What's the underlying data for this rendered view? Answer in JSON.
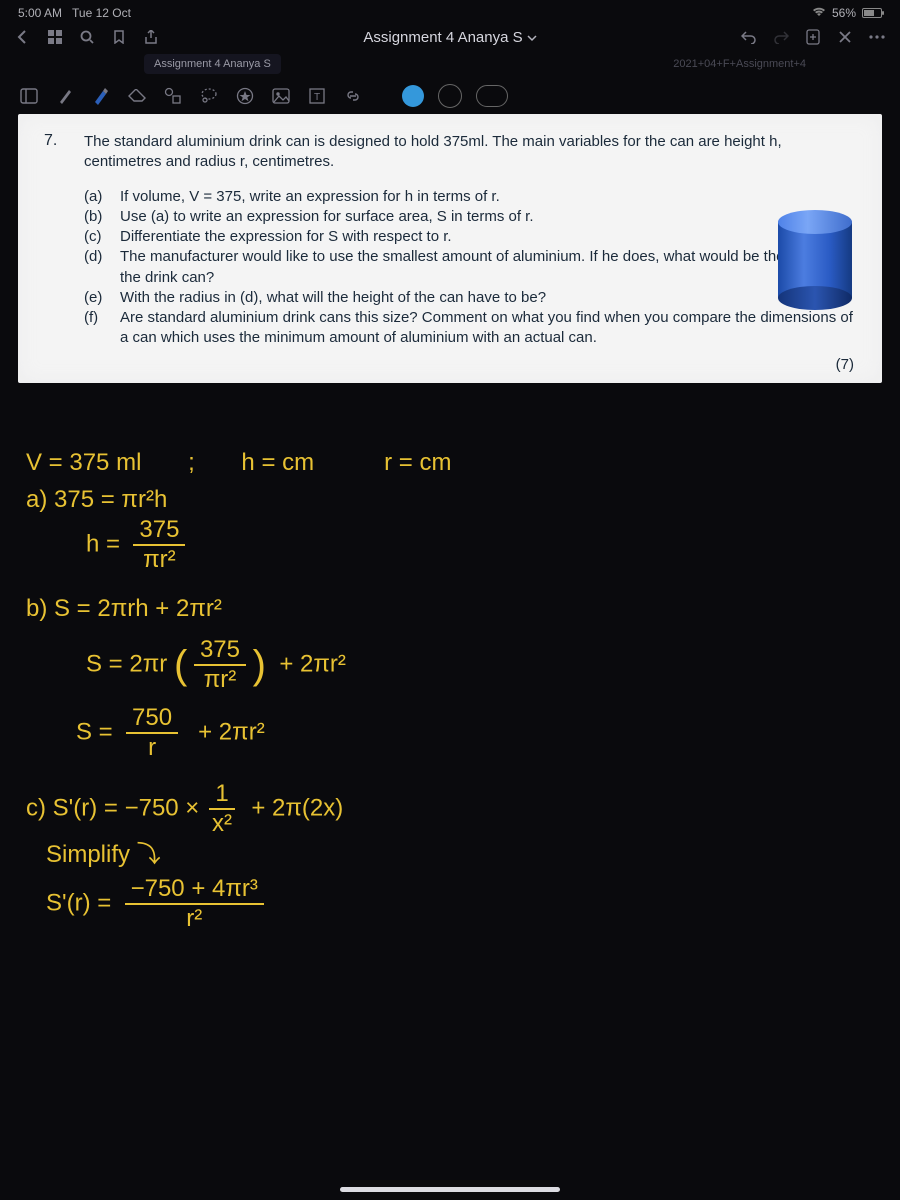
{
  "status": {
    "time": "5:00 AM",
    "date": "Tue 12 Oct",
    "battery_pct": "56%"
  },
  "titlebar": {
    "title": "Assignment 4 Ananya S"
  },
  "tabs": {
    "active": "Assignment 4 Ananya S",
    "secondary": "2021+04+F+Assignment+4"
  },
  "toolbar": {
    "current_color": "#3498db"
  },
  "question": {
    "number": "7.",
    "intro": "The standard aluminium drink can is designed to hold 375ml. The main variables for the can are height h, centimetres and radius r, centimetres.",
    "parts": [
      {
        "lbl": "(a)",
        "text": "If volume, V = 375, write an expression for h in terms of r."
      },
      {
        "lbl": "(b)",
        "text": "Use (a) to write an expression for surface area, S in terms of r."
      },
      {
        "lbl": "(c)",
        "text": "Differentiate the expression for S with respect to r."
      },
      {
        "lbl": "(d)",
        "text": "The manufacturer would like to use the smallest amount of aluminium. If he does, what would be the radius of the drink can?"
      },
      {
        "lbl": "(e)",
        "text": "With the radius in (d), what will the height of the can have to be?"
      },
      {
        "lbl": "(f)",
        "text": "Are standard aluminium drink cans this size? Comment on what you find when you compare the dimensions of a can which uses the minimum amount of aluminium with an actual can."
      }
    ],
    "marks": "(7)"
  },
  "handwriting": {
    "color": "#e8c233",
    "l1_a": "V = 375 ml",
    "l1_b": "h = cm",
    "l1_c": "r = cm",
    "l2": "a) 375 = πr²h",
    "l3_lead": "h =",
    "l3_num": "375",
    "l3_den": "πr²",
    "l4": "b)  S   =  2πrh + 2πr²",
    "l5_lead": "S  =  2πr",
    "l5_num": "375",
    "l5_den": "πr²",
    "l5_tail": "+ 2πr²",
    "l6_lead": "S =",
    "l6_num": "750",
    "l6_den": "r",
    "l6_tail": "+ 2πr²",
    "l7_lead": "c)  S'(r) = −750 ×",
    "l7_num": "1",
    "l7_den": "x²",
    "l7_tail": "+ 2π(2x)",
    "l8": "Simplify ⤵",
    "l9_lead": "S'(r) =",
    "l9_num": "−750 + 4πr³",
    "l9_den": "r²"
  }
}
